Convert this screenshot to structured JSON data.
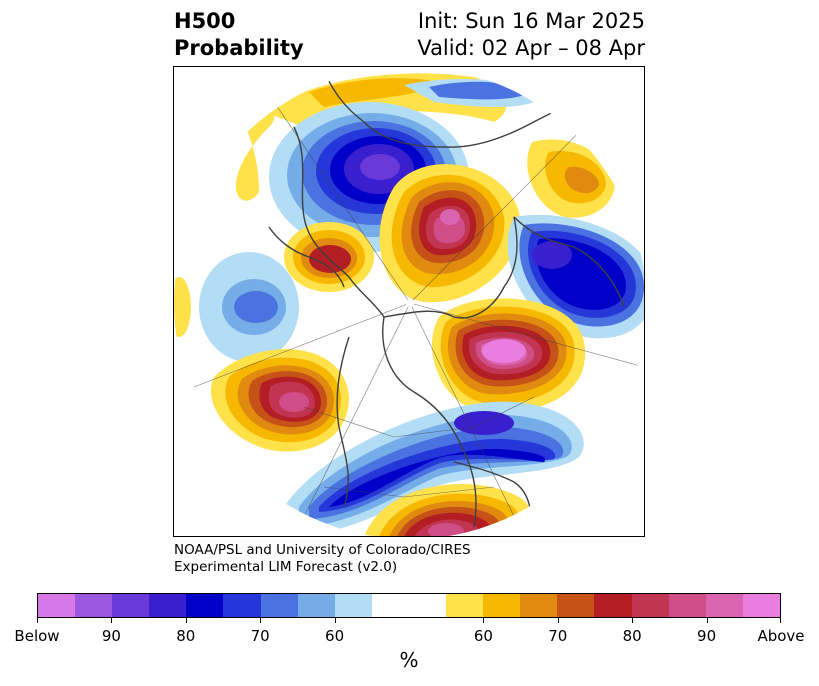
{
  "title": {
    "left_line1": "H500",
    "left_line2": "Probability",
    "right_line1": "Init: Sun 16 Mar 2025",
    "right_line2": "Valid: 02 Apr – 08 Apr"
  },
  "credit": {
    "line1": "NOAA/PSL and University of Colorado/CIRES",
    "line2": "Experimental LIM Forecast (v2.0)"
  },
  "colorbar": {
    "unit": "%",
    "below_colors": [
      "#d778e8",
      "#9b57e0",
      "#6a3ad8",
      "#3a1fcf",
      "#0000c8",
      "#2537d8",
      "#4a72e0",
      "#74ade8",
      "#b3dcf5"
    ],
    "neutral_color": "#ffffff",
    "above_colors": [
      "#ffe14a",
      "#f6b800",
      "#e08a10",
      "#c65218",
      "#b21e24",
      "#c23552",
      "#cf4e88",
      "#d964b0",
      "#e97ee0"
    ],
    "tick_labels": [
      "Below",
      "90",
      "80",
      "70",
      "60",
      "60",
      "70",
      "80",
      "90",
      "Above"
    ]
  },
  "map": {
    "projection": "north-polar-stereographic",
    "anomalies": [
      {
        "sign": "above",
        "max_level": "Above",
        "region": "eastern North Pacific"
      },
      {
        "sign": "above",
        "max_level": "Above",
        "region": "North Atlantic"
      },
      {
        "sign": "above",
        "max_level": "90",
        "region": "Siberia"
      },
      {
        "sign": "above",
        "max_level": "80",
        "region": "Caspian region"
      },
      {
        "sign": "above",
        "max_level": "90",
        "region": "southern United States"
      },
      {
        "sign": "below",
        "max_level": "90",
        "region": "central United States"
      },
      {
        "sign": "below",
        "max_level": "90",
        "region": "Europe"
      },
      {
        "sign": "below",
        "max_level": "90",
        "region": "northern Indian Ocean"
      },
      {
        "sign": "below",
        "max_level": "70",
        "region": "western Pacific"
      }
    ]
  }
}
